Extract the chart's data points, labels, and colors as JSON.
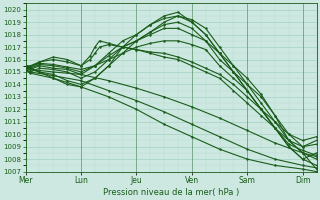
{
  "xlabel": "Pression niveau de la mer( hPa )",
  "ylim": [
    1007,
    1020.5
  ],
  "ytick_min": 1007,
  "ytick_max": 1020,
  "x_day_positions": [
    0,
    24,
    48,
    72,
    96,
    120
  ],
  "x_day_labels": [
    "Mer",
    "Lun",
    "Jeu",
    "Ven",
    "Sam",
    "Dim"
  ],
  "x_minor_interval": 6,
  "xlim": [
    0,
    126
  ],
  "background_color": "#cce8e0",
  "grid_major_color": "#99ccbb",
  "grid_minor_color": "#bbddd4",
  "line_color": "#1a5c1a",
  "line_width": 0.8,
  "marker_size": 1.5,
  "fig_width": 3.2,
  "fig_height": 2.0,
  "dpi": 100,
  "series": [
    {
      "x": [
        0,
        2,
        6,
        12,
        18,
        24,
        30,
        36,
        42,
        48,
        54,
        60,
        66,
        72,
        78,
        84,
        90,
        96,
        102,
        108,
        114,
        120,
        126
      ],
      "y": [
        1015.2,
        1015.0,
        1015.3,
        1015.2,
        1015.0,
        1014.5,
        1015.0,
        1016.0,
        1017.0,
        1017.5,
        1018.2,
        1019.0,
        1019.5,
        1019.2,
        1018.5,
        1017.0,
        1015.5,
        1014.0,
        1013.0,
        1011.5,
        1009.5,
        1008.5,
        1007.2
      ]
    },
    {
      "x": [
        0,
        2,
        6,
        12,
        18,
        24,
        30,
        36,
        42,
        48,
        54,
        60,
        66,
        72,
        78,
        84,
        90,
        96,
        102,
        108,
        114,
        120,
        126
      ],
      "y": [
        1015.3,
        1015.2,
        1015.5,
        1015.3,
        1015.2,
        1014.8,
        1015.5,
        1016.5,
        1017.5,
        1018.0,
        1018.8,
        1019.5,
        1019.8,
        1019.0,
        1018.0,
        1016.5,
        1015.0,
        1013.5,
        1012.0,
        1010.5,
        1009.0,
        1008.0,
        1007.5
      ]
    },
    {
      "x": [
        0,
        2,
        6,
        12,
        18,
        24,
        30,
        36,
        42,
        48,
        54,
        60,
        66,
        72,
        78,
        84,
        90,
        96,
        102,
        108,
        114,
        120,
        126
      ],
      "y": [
        1015.3,
        1015.3,
        1015.6,
        1015.5,
        1015.3,
        1015.0,
        1015.5,
        1016.3,
        1017.0,
        1017.5,
        1018.0,
        1018.5,
        1018.5,
        1018.0,
        1017.5,
        1016.0,
        1015.0,
        1014.0,
        1012.5,
        1011.0,
        1009.5,
        1008.5,
        1008.0
      ]
    },
    {
      "x": [
        0,
        2,
        6,
        12,
        18,
        24,
        30,
        36,
        42,
        48,
        54,
        60,
        66,
        72,
        78,
        84,
        90,
        96,
        102,
        108,
        114,
        120,
        126
      ],
      "y": [
        1015.4,
        1015.4,
        1015.7,
        1015.6,
        1015.4,
        1015.2,
        1015.5,
        1016.0,
        1016.5,
        1017.0,
        1017.3,
        1017.5,
        1017.5,
        1017.2,
        1016.8,
        1015.5,
        1014.5,
        1013.5,
        1012.0,
        1010.5,
        1009.2,
        1008.7,
        1008.3
      ]
    },
    {
      "x": [
        0,
        2,
        6,
        12,
        18,
        24,
        28,
        30,
        32,
        36,
        42,
        48,
        54,
        60,
        66,
        72,
        78,
        84,
        90,
        96,
        102,
        108,
        114,
        120,
        126
      ],
      "y": [
        1015.5,
        1015.5,
        1015.8,
        1016.0,
        1015.8,
        1015.5,
        1016.0,
        1016.5,
        1017.0,
        1017.2,
        1017.0,
        1016.8,
        1016.5,
        1016.2,
        1016.0,
        1015.5,
        1015.0,
        1014.5,
        1013.5,
        1012.5,
        1011.5,
        1010.5,
        1009.5,
        1009.0,
        1009.2
      ]
    },
    {
      "x": [
        0,
        2,
        6,
        12,
        18,
        24,
        28,
        30,
        32,
        36,
        42,
        48,
        54,
        60,
        66,
        72,
        78,
        84,
        90,
        96,
        102,
        108,
        114,
        120,
        126
      ],
      "y": [
        1015.5,
        1015.4,
        1015.8,
        1016.2,
        1016.0,
        1015.5,
        1016.3,
        1017.0,
        1017.5,
        1017.3,
        1017.0,
        1016.8,
        1016.6,
        1016.5,
        1016.2,
        1015.8,
        1015.3,
        1014.8,
        1014.0,
        1013.0,
        1012.0,
        1011.0,
        1010.0,
        1009.5,
        1009.8
      ]
    },
    {
      "x": [
        0,
        2,
        12,
        24,
        36,
        48,
        60,
        72,
        84,
        96,
        108,
        120,
        126
      ],
      "y": [
        1015.3,
        1015.2,
        1015.0,
        1014.8,
        1014.3,
        1013.7,
        1013.0,
        1012.2,
        1011.3,
        1010.3,
        1009.3,
        1008.5,
        1008.2
      ]
    },
    {
      "x": [
        0,
        2,
        12,
        24,
        36,
        48,
        60,
        72,
        84,
        96,
        108,
        120,
        126
      ],
      "y": [
        1015.2,
        1015.0,
        1014.7,
        1014.3,
        1013.5,
        1012.7,
        1011.8,
        1010.8,
        1009.8,
        1008.8,
        1008.0,
        1007.5,
        1007.3
      ]
    },
    {
      "x": [
        0,
        2,
        12,
        24,
        36,
        48,
        60,
        72,
        84,
        96,
        108,
        120,
        126
      ],
      "y": [
        1015.1,
        1014.9,
        1014.5,
        1013.8,
        1013.0,
        1012.0,
        1010.8,
        1009.8,
        1008.8,
        1008.0,
        1007.5,
        1007.2,
        1007.0
      ]
    },
    {
      "x": [
        0,
        2,
        6,
        12,
        18,
        24,
        30,
        36,
        42,
        48,
        54,
        60,
        66,
        72,
        78,
        84,
        90,
        96,
        102,
        108,
        114,
        120,
        126
      ],
      "y": [
        1015.5,
        1015.2,
        1015.0,
        1014.8,
        1014.3,
        1014.0,
        1014.5,
        1015.5,
        1016.5,
        1017.5,
        1018.2,
        1018.8,
        1019.0,
        1018.5,
        1017.5,
        1016.5,
        1015.5,
        1014.5,
        1013.2,
        1011.5,
        1010.0,
        1009.0,
        1009.5
      ]
    },
    {
      "x": [
        0,
        2,
        6,
        12,
        18,
        24,
        30,
        36,
        42,
        48,
        54,
        60,
        66,
        72,
        78,
        84,
        90,
        96,
        102,
        108,
        114,
        120,
        126
      ],
      "y": [
        1015.5,
        1015.3,
        1015.0,
        1014.5,
        1014.0,
        1013.8,
        1014.5,
        1015.5,
        1017.0,
        1018.0,
        1018.8,
        1019.3,
        1019.5,
        1019.0,
        1018.0,
        1016.5,
        1015.0,
        1013.5,
        1012.0,
        1010.5,
        1009.0,
        1008.0,
        1008.5
      ]
    }
  ]
}
